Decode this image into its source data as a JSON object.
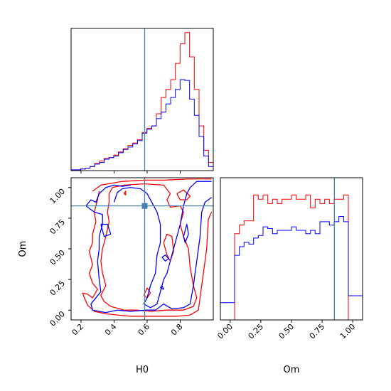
{
  "chart_data": {
    "type": "corner",
    "parameters": [
      "H0",
      "Om"
    ],
    "truth": {
      "H0": 0.585,
      "Om": 0.85
    },
    "colors": {
      "red": "#ff0000",
      "blue": "#0000ff",
      "truth": "#4682b4"
    },
    "h0_hist": {
      "xlim": [
        0.14,
        1.0
      ],
      "ticks": [
        0.2,
        0.4,
        0.6,
        0.8
      ],
      "tick_labels": [
        "0.2",
        "0.4",
        "0.6",
        "0.8"
      ],
      "bin_edges": [
        0.14,
        0.1687,
        0.1973,
        0.226,
        0.2547,
        0.2833,
        0.312,
        0.3407,
        0.3693,
        0.398,
        0.4267,
        0.4553,
        0.484,
        0.5127,
        0.5413,
        0.57,
        0.5987,
        0.6273,
        0.656,
        0.6847,
        0.7133,
        0.742,
        0.7707,
        0.7993,
        0.828,
        0.8567,
        0.8853,
        0.914,
        0.9427,
        0.9713,
        1.0
      ],
      "series": [
        {
          "color": "red",
          "values": [
            1,
            1,
            2,
            3,
            5,
            9,
            12,
            15,
            16,
            19,
            23,
            27,
            31,
            34,
            38,
            47,
            52,
            55,
            70,
            90,
            100,
            112,
            132,
            156,
            170,
            140,
            100,
            55,
            25,
            10
          ]
        },
        {
          "color": "blue",
          "values": [
            1,
            1,
            2,
            3,
            5,
            8,
            10,
            14,
            16,
            18,
            22,
            26,
            29,
            33,
            37,
            46,
            51,
            55,
            64,
            72,
            82,
            90,
            100,
            112,
            111,
            88,
            68,
            42,
            18,
            5
          ]
        }
      ],
      "ymax": 175
    },
    "om_hist": {
      "xlim": [
        -0.08,
        1.08
      ],
      "ticks": [
        0.0,
        0.25,
        0.5,
        0.75,
        1.0
      ],
      "tick_labels": [
        "0.00",
        "0.25",
        "0.50",
        "0.75",
        "1.00"
      ],
      "bin_edges": [
        -0.08,
        -0.0413,
        -0.0027,
        0.036,
        0.0747,
        0.1133,
        0.152,
        0.1907,
        0.2293,
        0.268,
        0.3067,
        0.3453,
        0.384,
        0.4227,
        0.4613,
        0.5,
        0.5387,
        0.5773,
        0.616,
        0.6547,
        0.6933,
        0.732,
        0.7707,
        0.8093,
        0.848,
        0.8867,
        0.9253,
        0.964,
        1.0027,
        1.0413,
        1.08
      ],
      "series": [
        {
          "color": "red",
          "values": [
            0,
            0,
            0,
            100,
            110,
            115,
            115,
            145,
            140,
            145,
            135,
            140,
            135,
            140,
            140,
            145,
            140,
            140,
            145,
            130,
            140,
            135,
            140,
            135,
            140,
            140,
            145,
            0,
            0,
            0
          ]
        },
        {
          "color": "blue",
          "values": [
            20,
            20,
            20,
            75,
            85,
            90,
            88,
            95,
            98,
            108,
            106,
            100,
            104,
            104,
            104,
            108,
            104,
            104,
            100,
            104,
            100,
            114,
            114,
            110,
            114,
            120,
            114,
            28,
            28,
            28
          ]
        }
      ],
      "ymax": 165
    },
    "scatter2d": {
      "xlim": [
        0.14,
        1.0
      ],
      "ylim": [
        -0.08,
        1.08
      ],
      "x_ticks": [
        0.2,
        0.4,
        0.6,
        0.8
      ],
      "x_tick_labels": [
        "0.2",
        "0.4",
        "0.6",
        "0.8"
      ],
      "y_ticks": [
        0.0,
        0.25,
        0.5,
        0.75,
        1.0
      ],
      "y_tick_labels": [
        "0.00",
        "0.25",
        "0.50",
        "0.75",
        "1.00"
      ],
      "contours": [
        {
          "color": "red",
          "points": [
            [
              0.27,
              0.97
            ],
            [
              0.32,
              1.02
            ],
            [
              0.45,
              1.05
            ],
            [
              0.58,
              1.06
            ],
            [
              0.7,
              1.06
            ],
            [
              0.85,
              1.07
            ],
            [
              0.99,
              1.07
            ]
          ]
        },
        {
          "color": "red",
          "points": [
            [
              0.99,
              0.8
            ],
            [
              0.97,
              0.74
            ],
            [
              0.96,
              0.5
            ],
            [
              0.94,
              0.3
            ],
            [
              0.92,
              0.1
            ],
            [
              0.91,
              0.0
            ],
            [
              0.86,
              -0.04
            ],
            [
              0.78,
              -0.05
            ],
            [
              0.72,
              -0.05
            ],
            [
              0.6,
              -0.05
            ],
            [
              0.5,
              -0.05
            ],
            [
              0.42,
              -0.04
            ],
            [
              0.35,
              -0.03
            ],
            [
              0.28,
              -0.01
            ],
            [
              0.24,
              0.04
            ],
            [
              0.22,
              0.1
            ],
            [
              0.21,
              0.14
            ],
            [
              0.24,
              0.13
            ],
            [
              0.27,
              0.1
            ],
            [
              0.3,
              0.17
            ],
            [
              0.27,
              0.22
            ],
            [
              0.25,
              0.3
            ],
            [
              0.27,
              0.37
            ],
            [
              0.25,
              0.48
            ],
            [
              0.27,
              0.55
            ],
            [
              0.27,
              0.62
            ],
            [
              0.29,
              0.72
            ],
            [
              0.28,
              0.8
            ],
            [
              0.3,
              0.9
            ],
            [
              0.31,
              0.97
            ]
          ]
        },
        {
          "color": "red",
          "points": [
            [
              0.37,
              0.88
            ],
            [
              0.37,
              0.95
            ],
            [
              0.39,
              1.0
            ],
            [
              0.46,
              1.02
            ],
            [
              0.58,
              1.03
            ],
            [
              0.7,
              1.02
            ],
            [
              0.74,
              0.95
            ],
            [
              0.72,
              0.9
            ],
            [
              0.74,
              0.84
            ],
            [
              0.8,
              0.85
            ],
            [
              0.82,
              0.8
            ],
            [
              0.8,
              0.7
            ],
            [
              0.82,
              0.6
            ],
            [
              0.85,
              0.5
            ],
            [
              0.86,
              0.35
            ],
            [
              0.88,
              0.2
            ],
            [
              0.9,
              0.1
            ],
            [
              0.88,
              0.03
            ],
            [
              0.82,
              0.0
            ],
            [
              0.72,
              0.0
            ],
            [
              0.62,
              -0.01
            ],
            [
              0.54,
              0.0
            ],
            [
              0.46,
              0.0
            ],
            [
              0.38,
              0.03
            ],
            [
              0.34,
              0.07
            ],
            [
              0.32,
              0.12
            ],
            [
              0.35,
              0.2
            ],
            [
              0.33,
              0.3
            ],
            [
              0.32,
              0.4
            ],
            [
              0.33,
              0.5
            ],
            [
              0.35,
              0.6
            ],
            [
              0.37,
              0.72
            ],
            [
              0.36,
              0.8
            ],
            [
              0.37,
              0.88
            ]
          ]
        },
        {
          "color": "red",
          "points": [
            [
              0.78,
              0.95
            ],
            [
              0.82,
              0.98
            ],
            [
              0.86,
              0.93
            ],
            [
              0.84,
              0.9
            ],
            [
              0.8,
              0.9
            ],
            [
              0.78,
              0.95
            ]
          ]
        },
        {
          "color": "red",
          "points": [
            [
              0.7,
              0.55
            ],
            [
              0.72,
              0.62
            ],
            [
              0.75,
              0.6
            ],
            [
              0.76,
              0.48
            ],
            [
              0.74,
              0.4
            ],
            [
              0.72,
              0.45
            ],
            [
              0.7,
              0.55
            ]
          ]
        },
        {
          "color": "red",
          "points": [
            [
              0.58,
              0.12
            ],
            [
              0.6,
              0.18
            ],
            [
              0.62,
              0.14
            ],
            [
              0.6,
              0.1
            ],
            [
              0.58,
              0.12
            ]
          ]
        },
        {
          "color": "red",
          "points": [
            [
              0.46,
              0.95
            ],
            [
              0.47,
              0.97
            ],
            [
              0.47,
              0.94
            ],
            [
              0.46,
              0.95
            ]
          ]
        },
        {
          "color": "blue",
          "points": [
            [
              0.99,
              0.92
            ],
            [
              0.95,
              0.88
            ],
            [
              0.93,
              0.8
            ],
            [
              0.92,
              0.6
            ],
            [
              0.9,
              0.4
            ],
            [
              0.88,
              0.2
            ],
            [
              0.86,
              0.05
            ],
            [
              0.82,
              0.02
            ],
            [
              0.75,
              0.01
            ],
            [
              0.7,
              0.05
            ],
            [
              0.65,
              0.0
            ],
            [
              0.6,
              0.0
            ],
            [
              0.5,
              -0.01
            ],
            [
              0.42,
              0.0
            ],
            [
              0.35,
              -0.02
            ],
            [
              0.27,
              0.0
            ],
            [
              0.26,
              0.05
            ],
            [
              0.29,
              0.1
            ],
            [
              0.32,
              0.15
            ],
            [
              0.31,
              0.25
            ],
            [
              0.3,
              0.4
            ],
            [
              0.31,
              0.5
            ],
            [
              0.31,
              0.6
            ],
            [
              0.33,
              0.7
            ],
            [
              0.33,
              0.78
            ],
            [
              0.28,
              0.8
            ],
            [
              0.23,
              0.85
            ],
            [
              0.26,
              0.9
            ],
            [
              0.29,
              0.88
            ],
            [
              0.31,
              0.95
            ],
            [
              0.35,
              1.0
            ],
            [
              0.4,
              1.02
            ],
            [
              0.45,
              1.01
            ],
            [
              0.5,
              1.02
            ]
          ]
        },
        {
          "color": "blue",
          "points": [
            [
              0.4,
              0.88
            ],
            [
              0.42,
              0.96
            ],
            [
              0.45,
              0.99
            ],
            [
              0.5,
              1.0
            ],
            [
              0.56,
              0.99
            ],
            [
              0.6,
              0.95
            ],
            [
              0.62,
              0.9
            ],
            [
              0.66,
              0.8
            ],
            [
              0.68,
              0.7
            ],
            [
              0.68,
              0.55
            ],
            [
              0.66,
              0.45
            ],
            [
              0.65,
              0.3
            ],
            [
              0.62,
              0.2
            ],
            [
              0.6,
              0.1
            ],
            [
              0.58,
              0.05
            ],
            [
              0.62,
              0.02
            ],
            [
              0.66,
              0.05
            ],
            [
              0.68,
              0.15
            ],
            [
              0.7,
              0.25
            ],
            [
              0.72,
              0.3
            ],
            [
              0.74,
              0.4
            ],
            [
              0.78,
              0.6
            ],
            [
              0.8,
              0.7
            ],
            [
              0.82,
              0.85
            ],
            [
              0.84,
              0.95
            ],
            [
              0.86,
              1.0
            ],
            [
              0.9,
              1.05
            ],
            [
              0.99,
              1.05
            ]
          ]
        },
        {
          "color": "blue",
          "points": [
            [
              0.32,
              0.7
            ],
            [
              0.34,
              0.6
            ],
            [
              0.38,
              0.62
            ],
            [
              0.36,
              0.7
            ],
            [
              0.32,
              0.7
            ]
          ]
        },
        {
          "color": "blue",
          "points": [
            [
              0.82,
              0.6
            ],
            [
              0.84,
              0.7
            ],
            [
              0.85,
              0.62
            ],
            [
              0.83,
              0.55
            ],
            [
              0.82,
              0.6
            ]
          ]
        },
        {
          "color": "blue",
          "points": [
            [
              0.69,
              0.43
            ],
            [
              0.71,
              0.45
            ],
            [
              0.73,
              0.42
            ],
            [
              0.71,
              0.4
            ],
            [
              0.69,
              0.43
            ]
          ]
        },
        {
          "color": "blue",
          "points": [
            [
              0.68,
              0.18
            ],
            [
              0.69,
              0.2
            ],
            [
              0.7,
              0.17
            ],
            [
              0.68,
              0.18
            ]
          ]
        }
      ]
    }
  }
}
